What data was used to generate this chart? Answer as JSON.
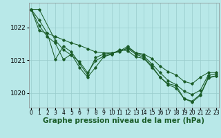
{
  "background_color": "#b8e8e8",
  "grid_color": "#99cccc",
  "line_color": "#1a5c28",
  "xlabel": "Graphe pression niveau de la mer (hPa)",
  "xlabel_fontsize": 7.5,
  "ytick_fontsize": 6.5,
  "xtick_fontsize": 5.5,
  "xlim": [
    -0.3,
    23.3
  ],
  "ylim": [
    1019.55,
    1022.75
  ],
  "yticks": [
    1020,
    1021,
    1022
  ],
  "xticks": [
    0,
    1,
    2,
    3,
    4,
    5,
    6,
    7,
    8,
    9,
    10,
    11,
    12,
    13,
    14,
    15,
    16,
    17,
    18,
    19,
    20,
    21,
    22,
    23
  ],
  "series1": {
    "x": [
      0,
      1,
      2,
      3,
      4,
      5,
      6,
      7,
      8,
      9,
      10,
      11,
      12,
      13,
      14,
      15,
      16,
      17,
      18,
      19,
      20,
      21,
      22,
      23
    ],
    "y": [
      1022.55,
      1022.22,
      1021.82,
      1021.72,
      1021.62,
      1021.52,
      1021.45,
      1021.35,
      1021.25,
      1021.22,
      1021.22,
      1021.25,
      1021.38,
      1021.22,
      1021.18,
      1021.05,
      1020.82,
      1020.65,
      1020.55,
      1020.35,
      1020.28,
      1020.48,
      1020.62,
      1020.62
    ]
  },
  "series2": {
    "x": [
      0,
      1,
      2,
      3,
      4,
      5,
      6,
      7,
      8,
      9,
      10,
      11,
      12,
      13,
      14,
      15,
      16,
      17,
      18,
      19,
      20,
      21,
      22,
      23
    ],
    "y": [
      1022.55,
      1021.9,
      1021.82,
      1021.02,
      1021.42,
      1021.25,
      1020.9,
      1020.55,
      1021.08,
      1021.18,
      1021.22,
      1021.28,
      1021.42,
      1021.22,
      1021.12,
      1020.88,
      1020.62,
      1020.38,
      1020.25,
      1020.05,
      1019.95,
      1020.08,
      1020.55,
      1020.58
    ]
  },
  "series3": {
    "x": [
      0,
      1,
      2,
      3,
      4,
      5,
      6,
      7,
      8,
      9,
      10,
      11,
      12,
      13,
      14,
      15,
      16,
      17,
      18,
      19,
      20,
      21,
      22,
      23
    ],
    "y": [
      1022.55,
      1022.05,
      1021.72,
      1021.52,
      1021.02,
      1021.18,
      1020.78,
      1020.48,
      1020.78,
      1021.1,
      1021.18,
      1021.32,
      1021.28,
      1021.1,
      1021.05,
      1020.78,
      1020.48,
      1020.28,
      1020.22,
      1019.82,
      1019.75,
      1019.95,
      1020.48,
      1020.52
    ]
  },
  "series4": {
    "x": [
      0,
      1,
      3,
      4,
      5,
      6,
      7,
      8,
      9,
      10,
      11,
      12,
      13,
      14,
      15,
      16,
      17,
      18,
      19,
      20,
      21,
      22,
      23
    ],
    "y": [
      1022.55,
      1022.55,
      1021.6,
      1021.32,
      1021.15,
      1020.95,
      1020.62,
      1020.98,
      1021.12,
      1021.2,
      1021.28,
      1021.35,
      1021.18,
      1021.08,
      1020.82,
      1020.48,
      1020.25,
      1020.15,
      1019.82,
      1019.72,
      1019.92,
      1020.45,
      1020.52
    ]
  }
}
